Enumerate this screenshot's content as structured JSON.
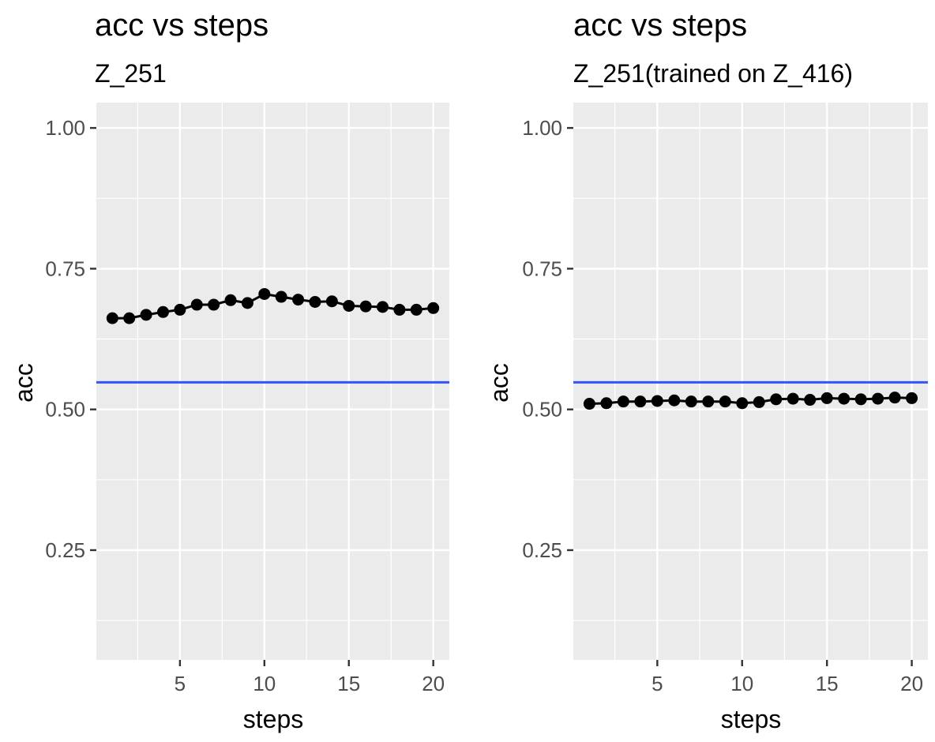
{
  "chart_data": [
    {
      "type": "line",
      "title": "acc vs steps",
      "subtitle": "Z_251",
      "xlabel": "steps",
      "ylabel": "acc",
      "xlim": [
        0.05,
        20.95
      ],
      "ylim": [
        0.055,
        1.045
      ],
      "x_ticks": [
        5,
        10,
        15,
        20
      ],
      "y_ticks": [
        0.25,
        0.5,
        0.75,
        1.0
      ],
      "y_tick_labels": [
        "0.25",
        "0.50",
        "0.75",
        "1.00"
      ],
      "grid": true,
      "x": [
        1,
        2,
        3,
        4,
        5,
        6,
        7,
        8,
        9,
        10,
        11,
        12,
        13,
        14,
        15,
        16,
        17,
        18,
        19,
        20
      ],
      "series": [
        {
          "values": [
            0.662,
            0.662,
            0.668,
            0.673,
            0.677,
            0.686,
            0.686,
            0.694,
            0.689,
            0.705,
            0.7,
            0.695,
            0.691,
            0.692,
            0.684,
            0.683,
            0.682,
            0.677,
            0.677,
            0.68
          ],
          "color": "#000000"
        }
      ],
      "reference_line": {
        "y": 0.548,
        "color": "#3355ff"
      }
    },
    {
      "type": "line",
      "title": "acc vs steps",
      "subtitle": "Z_251(trained on Z_416)",
      "xlabel": "steps",
      "ylabel": "acc",
      "xlim": [
        0.05,
        20.95
      ],
      "ylim": [
        0.055,
        1.045
      ],
      "x_ticks": [
        5,
        10,
        15,
        20
      ],
      "y_ticks": [
        0.25,
        0.5,
        0.75,
        1.0
      ],
      "y_tick_labels": [
        "0.25",
        "0.50",
        "0.75",
        "1.00"
      ],
      "grid": true,
      "x": [
        1,
        2,
        3,
        4,
        5,
        6,
        7,
        8,
        9,
        10,
        11,
        12,
        13,
        14,
        15,
        16,
        17,
        18,
        19,
        20
      ],
      "series": [
        {
          "values": [
            0.51,
            0.511,
            0.514,
            0.514,
            0.515,
            0.516,
            0.514,
            0.514,
            0.514,
            0.511,
            0.513,
            0.518,
            0.519,
            0.517,
            0.52,
            0.519,
            0.518,
            0.519,
            0.521,
            0.52
          ],
          "color": "#000000"
        }
      ],
      "reference_line": {
        "y": 0.548,
        "color": "#3355ff"
      }
    }
  ]
}
